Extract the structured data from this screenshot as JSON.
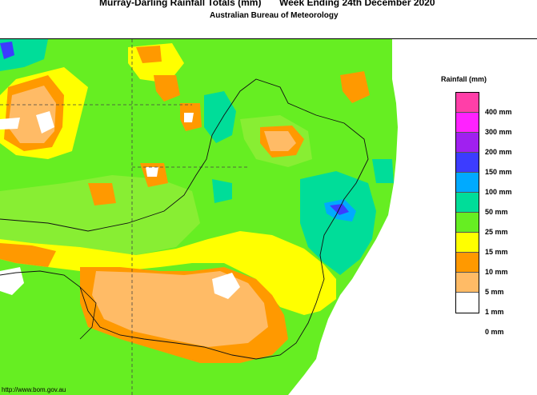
{
  "header": {
    "title_left": "Murray-Darling Rainfall Totals (mm)",
    "title_right": "Week Ending 24th December 2020",
    "subtitle": "Australian Bureau of Meteorology"
  },
  "footer": {
    "url": "http://www.bom.gov.au"
  },
  "legend": {
    "title": "Rainfall (mm)",
    "items": [
      {
        "label": "400 mm",
        "color": "#ff3fa8"
      },
      {
        "label": "300 mm",
        "color": "#ff22ff"
      },
      {
        "label": "200 mm",
        "color": "#a020f0"
      },
      {
        "label": "150 mm",
        "color": "#3c3cff"
      },
      {
        "label": "100 mm",
        "color": "#00aaff"
      },
      {
        "label": "50 mm",
        "color": "#00dd99"
      },
      {
        "label": "25 mm",
        "color": "#66ee22"
      },
      {
        "label": "15 mm",
        "color": "#ffff00"
      },
      {
        "label": "10 mm",
        "color": "#ff9900"
      },
      {
        "label": "5 mm",
        "color": "#ffbb66"
      },
      {
        "label": "1 mm",
        "color": "#ffffff"
      },
      {
        "label": "0 mm",
        "color": "#ffffff"
      }
    ]
  }
}
